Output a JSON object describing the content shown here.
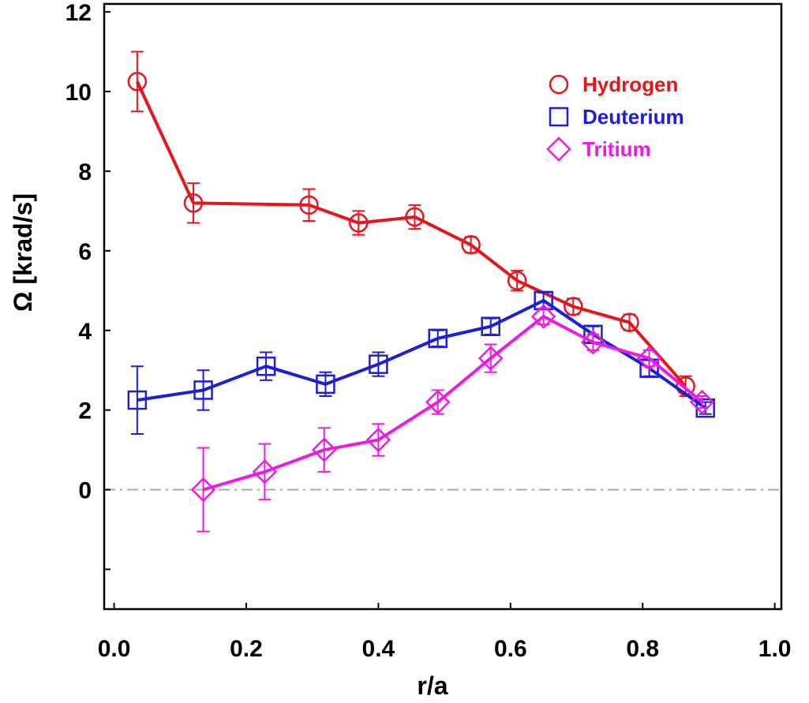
{
  "chart_data": {
    "type": "line",
    "title": "",
    "xlabel": "r/a",
    "ylabel": "Ω [krad/s]",
    "xlim": [
      -0.015,
      1.01
    ],
    "ylim": [
      -3.0,
      12.2
    ],
    "xticks": [
      0.0,
      0.2,
      0.4,
      0.6,
      0.8,
      1.0
    ],
    "xtick_labels": [
      "0.0",
      "0.2",
      "0.4",
      "0.6",
      "0.8",
      "1.0"
    ],
    "yticks": [
      -2,
      0,
      2,
      4,
      6,
      8,
      10,
      12
    ],
    "ytick_labels": [
      "",
      "0",
      "2",
      "4",
      "6",
      "8",
      "10",
      "12"
    ],
    "zero_line": {
      "y": 0,
      "style": "dash-dot",
      "color": "#aaaaaa"
    },
    "legend_position": "top-right",
    "series": [
      {
        "name": "Hydrogen",
        "color": "#e8141b",
        "marker": "circle",
        "x": [
          0.035,
          0.12,
          0.295,
          0.37,
          0.455,
          0.54,
          0.61,
          0.695,
          0.78,
          0.865
        ],
        "y": [
          10.25,
          7.2,
          7.15,
          6.7,
          6.85,
          6.15,
          5.25,
          4.6,
          4.2,
          2.6
        ],
        "err": [
          0.75,
          0.5,
          0.4,
          0.3,
          0.3,
          0.2,
          0.25,
          0.2,
          0.2,
          0.25
        ]
      },
      {
        "name": "Deuterium",
        "color": "#1c1fd6",
        "marker": "square",
        "x": [
          0.035,
          0.135,
          0.23,
          0.32,
          0.4,
          0.49,
          0.57,
          0.65,
          0.725,
          0.81,
          0.895
        ],
        "y": [
          2.25,
          2.5,
          3.1,
          2.65,
          3.15,
          3.8,
          4.1,
          4.75,
          3.9,
          3.05,
          2.05
        ],
        "err": [
          0.85,
          0.5,
          0.35,
          0.3,
          0.3,
          0.2,
          0.2,
          0.2,
          0.2,
          0.2,
          0.15
        ]
      },
      {
        "name": "Tritium",
        "color": "#ee19e6",
        "marker": "diamond",
        "x": [
          0.135,
          0.228,
          0.318,
          0.4,
          0.49,
          0.57,
          0.65,
          0.725,
          0.81,
          0.89
        ],
        "y": [
          0.0,
          0.45,
          1.0,
          1.25,
          2.2,
          3.3,
          4.35,
          3.7,
          3.3,
          2.2
        ],
        "err": [
          1.05,
          0.7,
          0.55,
          0.4,
          0.3,
          0.35,
          0.2,
          0.2,
          0.2,
          0.15
        ]
      }
    ]
  }
}
